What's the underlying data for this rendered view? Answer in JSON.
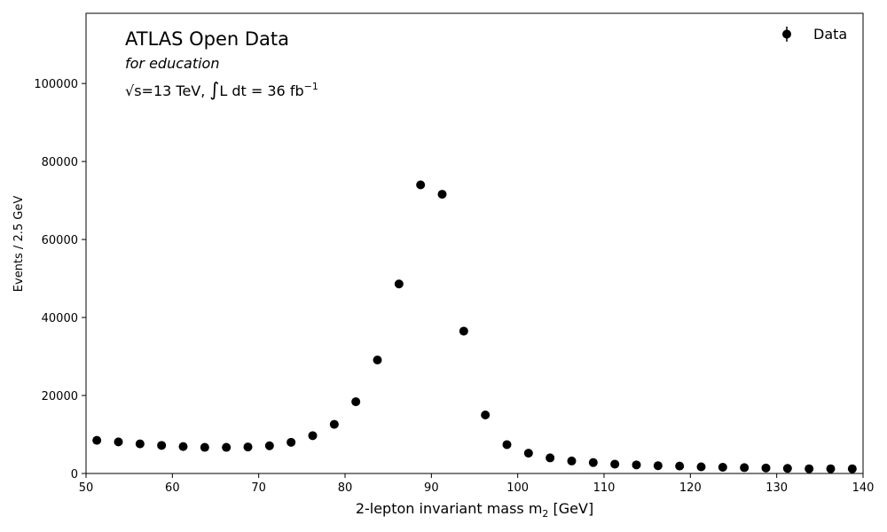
{
  "chart_data": {
    "type": "scatter",
    "xlabel": "2-lepton invariant mass m",
    "xlabel_sub": "2",
    "xlabel_unit": " [GeV]",
    "ylabel": "Events / 2.5 GeV",
    "xlim": [
      50,
      140
    ],
    "ylim": [
      0,
      118000
    ],
    "xticks": [
      50,
      60,
      70,
      80,
      90,
      100,
      110,
      120,
      130,
      140
    ],
    "yticks": [
      0,
      20000,
      40000,
      60000,
      80000,
      100000
    ],
    "legend": {
      "label": "Data",
      "position": "top-right"
    },
    "annotations": {
      "title": "ATLAS Open Data",
      "subtitle": "for education",
      "energy_sqrt": "√s",
      "energy_text": "=13 TeV, ",
      "lumi_integral": "∫",
      "lumi_text": "L dt = 36 fb",
      "lumi_exp": "−1"
    },
    "series": [
      {
        "name": "Data",
        "color": "#000000",
        "x": [
          51.25,
          53.75,
          56.25,
          58.75,
          61.25,
          63.75,
          66.25,
          68.75,
          71.25,
          73.75,
          76.25,
          78.75,
          81.25,
          83.75,
          86.25,
          88.75,
          91.25,
          93.75,
          96.25,
          98.75,
          101.25,
          103.75,
          106.25,
          108.75,
          111.25,
          113.75,
          116.25,
          118.75,
          121.25,
          123.75,
          126.25,
          128.75,
          131.25,
          133.75,
          136.25,
          138.75
        ],
        "y": [
          8500,
          8100,
          7600,
          7200,
          6900,
          6700,
          6700,
          6800,
          7100,
          8000,
          9700,
          12600,
          18400,
          29100,
          48600,
          74000,
          71600,
          36500,
          15000,
          7400,
          5200,
          4000,
          3200,
          2800,
          2400,
          2200,
          2000,
          1900,
          1700,
          1600,
          1500,
          1400,
          1300,
          1200,
          1200,
          1200
        ]
      }
    ]
  }
}
